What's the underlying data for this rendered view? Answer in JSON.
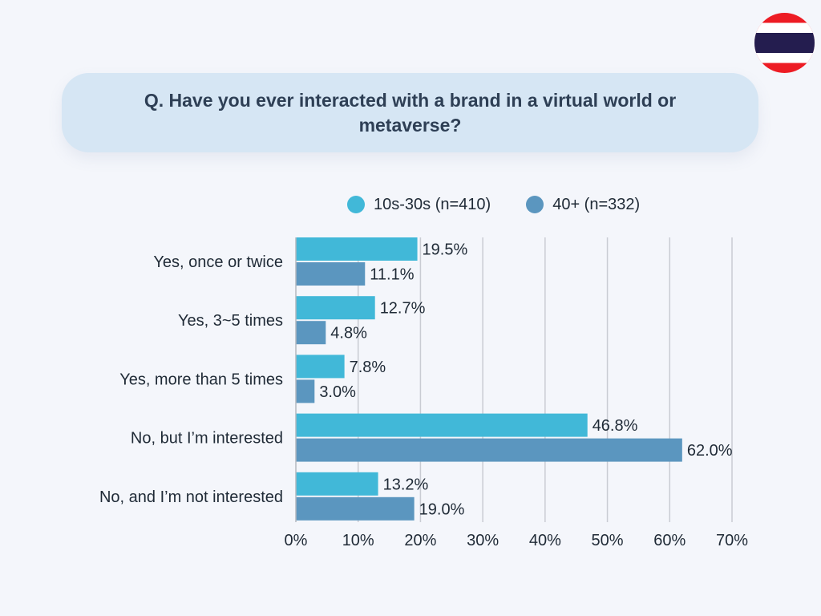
{
  "header": {
    "question": "Q. Have you ever interacted with a brand in a virtual world or metaverse?",
    "flag_icon": "thailand-flag-icon"
  },
  "colors": {
    "series_1": "#41b8d8",
    "series_2": "#5b96bf",
    "grid": "#c9ccd3",
    "axis": "#b4b8c0",
    "text": "#1f2a36",
    "question_bg": "#d6e6f4"
  },
  "chart_data": {
    "type": "bar",
    "orientation": "horizontal",
    "categories": [
      "Yes, once or twice",
      "Yes, 3~5 times",
      "Yes, more than 5 times",
      "No, but I’m interested",
      "No, and I’m not interested"
    ],
    "series": [
      {
        "name": "10s-30s (n=410)",
        "values": [
          19.5,
          12.7,
          7.8,
          46.8,
          13.2
        ]
      },
      {
        "name": "40+ (n=332)",
        "values": [
          11.1,
          4.8,
          3.0,
          62.0,
          19.0
        ]
      }
    ],
    "data_labels": [
      [
        "19.5%",
        "12.7%",
        "7.8%",
        "46.8%",
        "13.2%"
      ],
      [
        "11.1%",
        "4.8%",
        "3.0%",
        "62.0%",
        "19.0%"
      ]
    ],
    "x_ticks": [
      "0%",
      "10%",
      "20%",
      "30%",
      "40%",
      "50%",
      "60%",
      "70%"
    ],
    "xlim": [
      0,
      70
    ],
    "grid": true,
    "legend_position": "top"
  }
}
